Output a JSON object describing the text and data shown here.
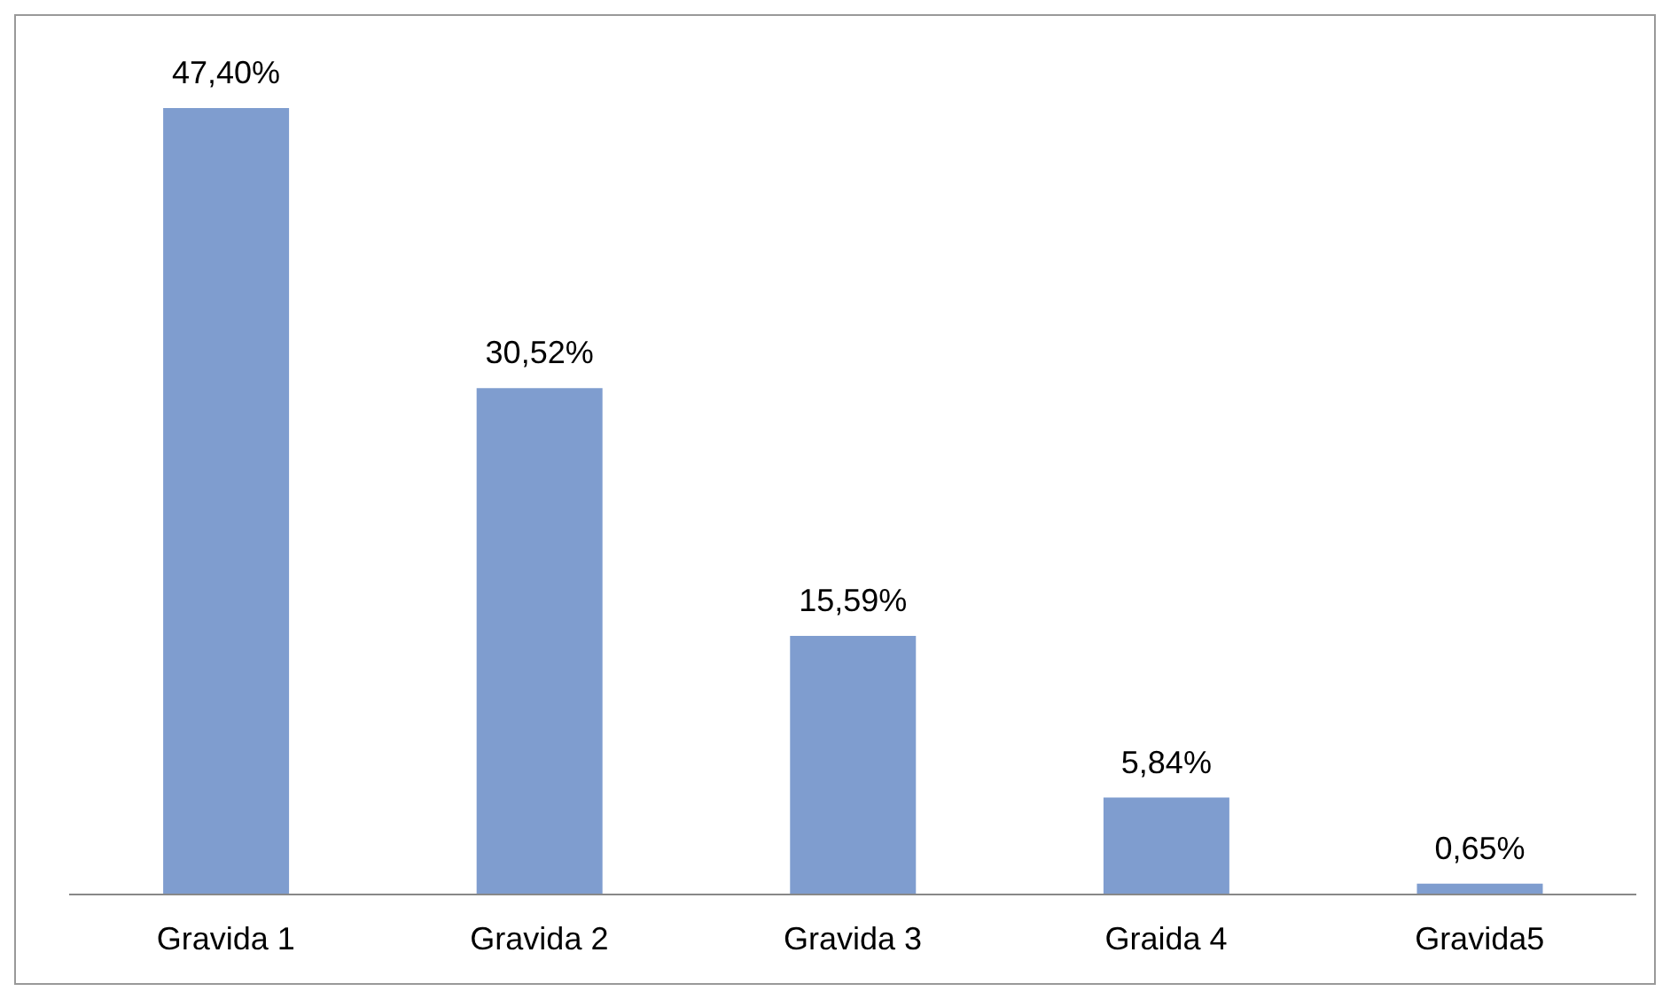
{
  "chart_data": {
    "type": "bar",
    "categories": [
      "Gravida 1",
      "Gravida 2",
      "Gravida 3",
      "Graida 4",
      "Gravida5"
    ],
    "values": [
      47.4,
      30.52,
      15.59,
      5.84,
      0.65
    ],
    "value_labels": [
      "47,40%",
      "30,52%",
      "15,59%",
      "5,84%",
      "0,65%"
    ],
    "color": "#7f9dcf",
    "grid": false,
    "legend": false
  }
}
